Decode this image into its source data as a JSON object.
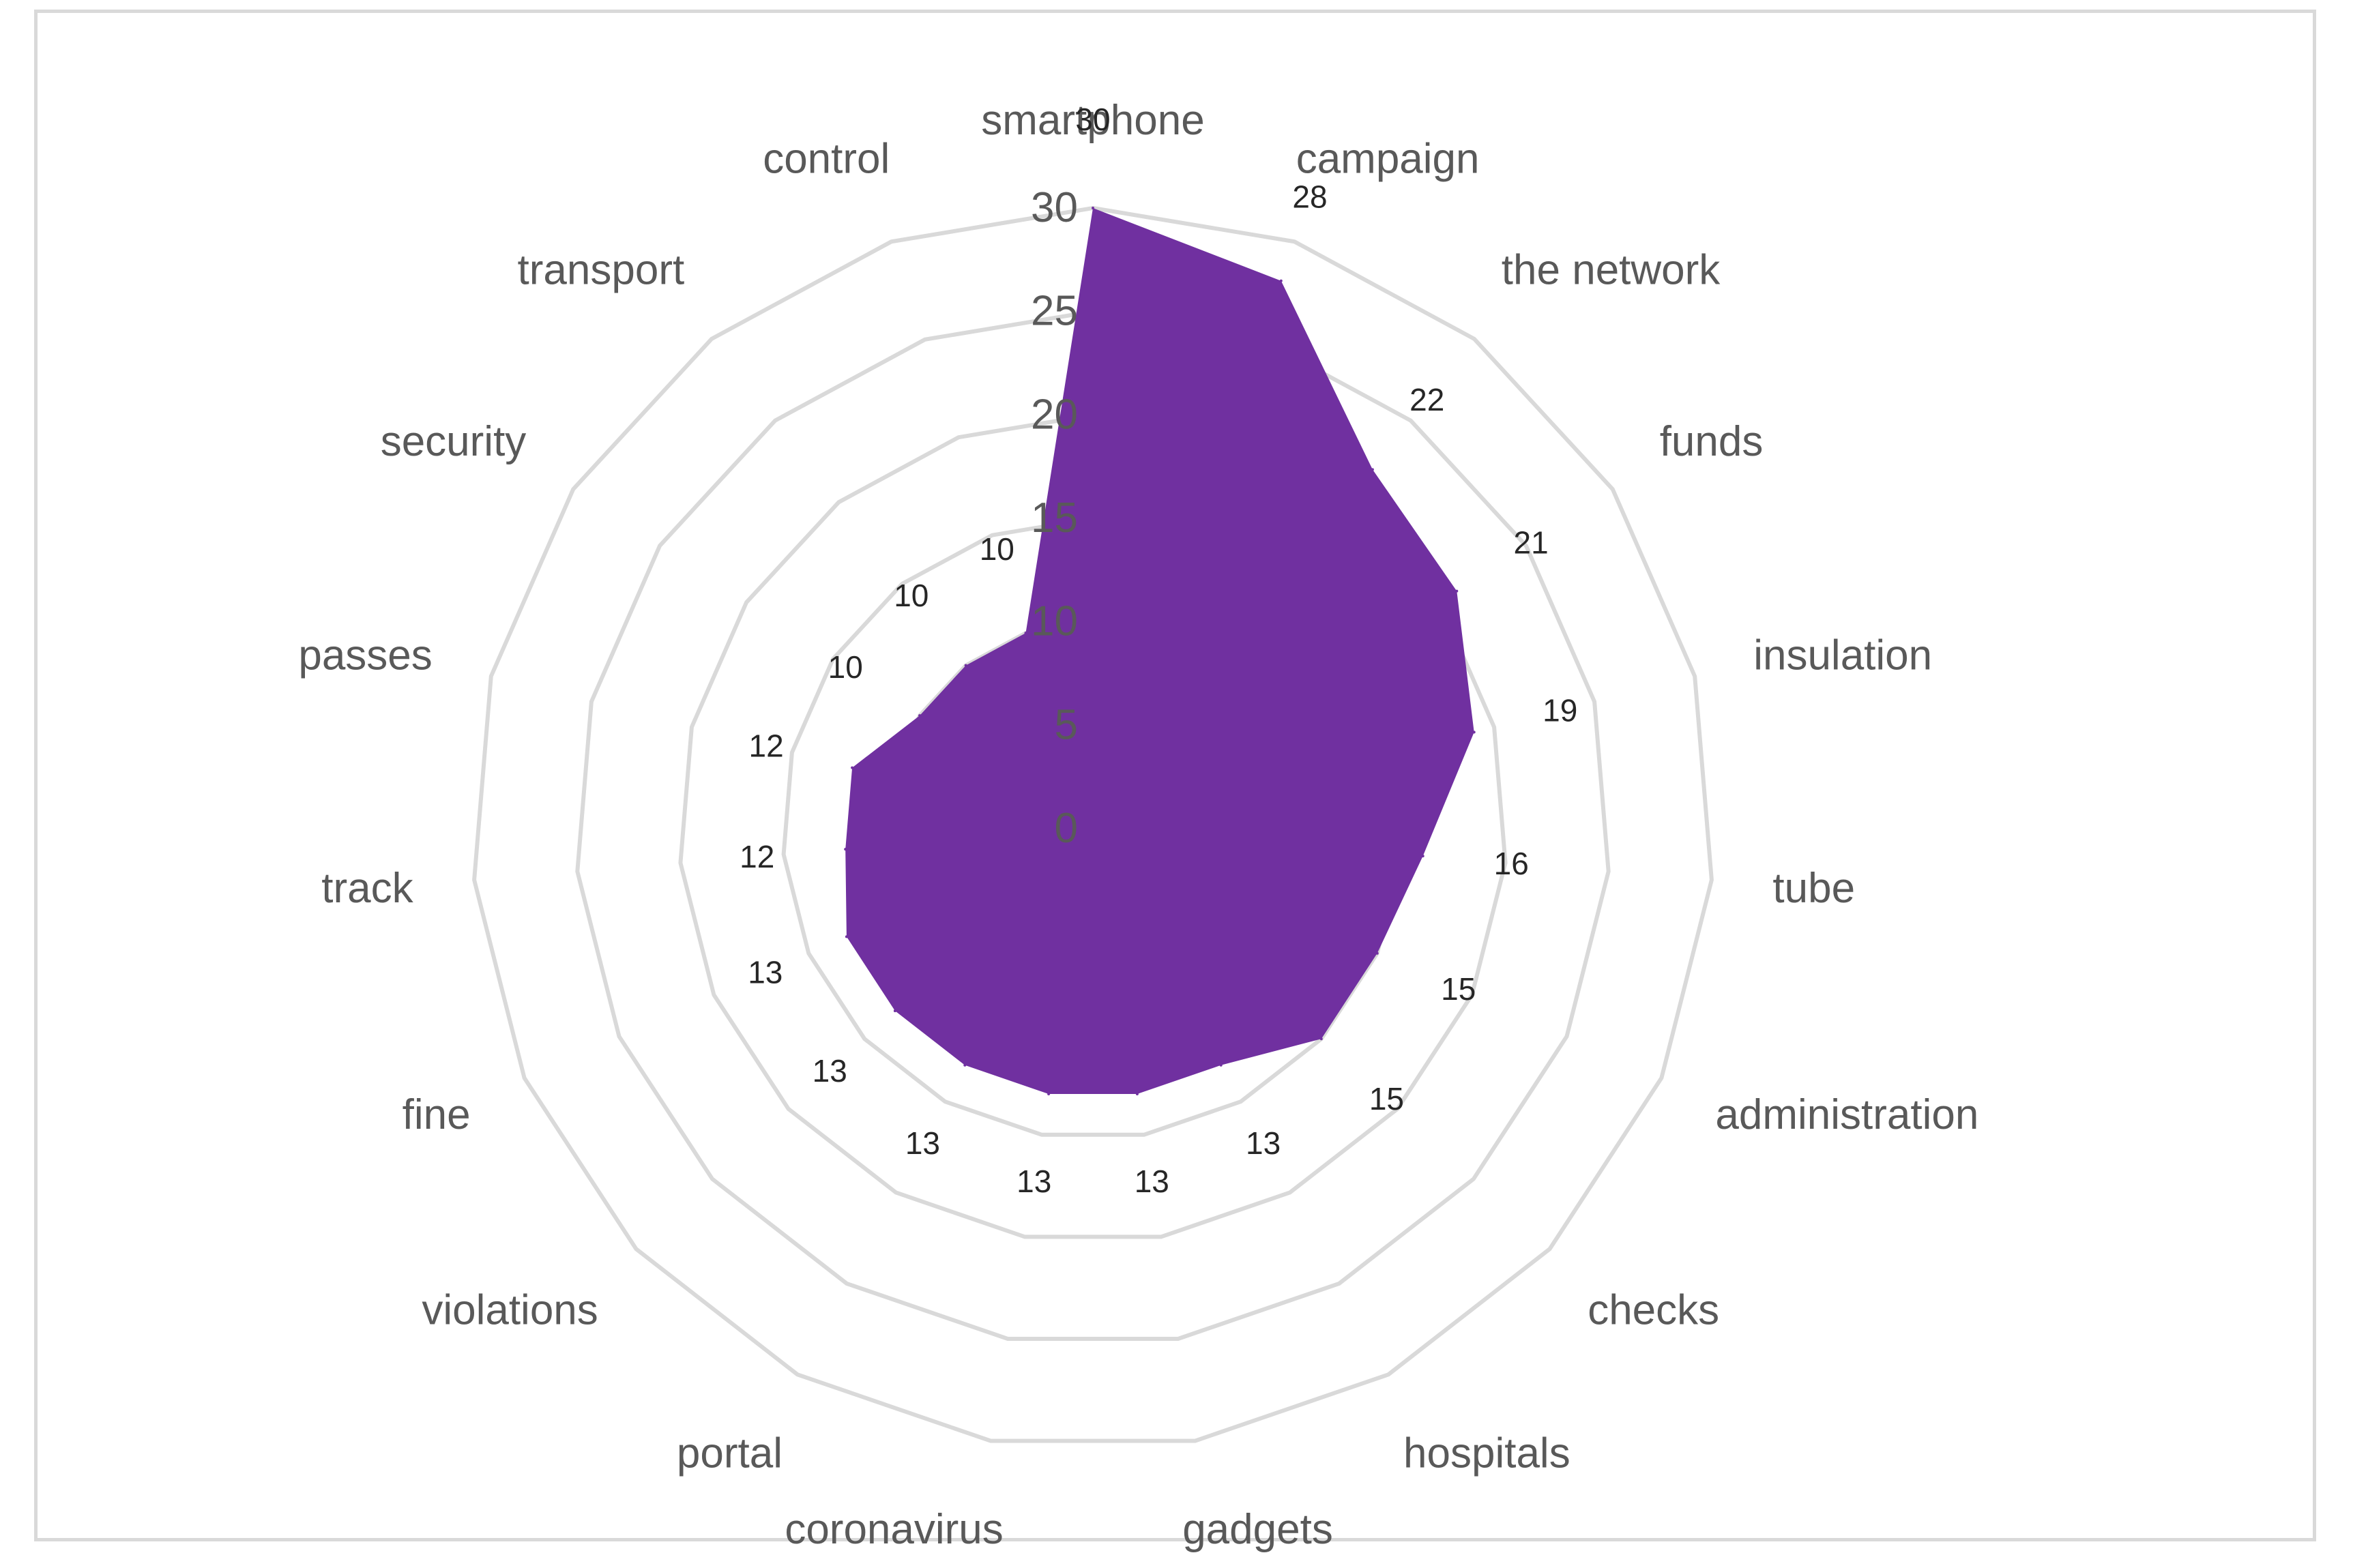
{
  "chart_data": {
    "type": "radar",
    "categories": [
      "smartphone",
      "campaign",
      "the network",
      "funds",
      "insulation",
      "tube",
      "administration",
      "checks",
      "hospitals",
      "gadgets",
      "coronavirus",
      "portal",
      "violations",
      "fine",
      "track",
      "passes",
      "security",
      "transport",
      "control"
    ],
    "series": [
      {
        "values": [
          30,
          28,
          22,
          21,
          19,
          16,
          15,
          15,
          13,
          13,
          13,
          13,
          13,
          13,
          12,
          12,
          10,
          10,
          10
        ]
      }
    ],
    "radial_ticks": [
      0,
      5,
      10,
      15,
      20,
      25,
      30
    ],
    "rlim": [
      0,
      30
    ],
    "grid": true,
    "legend": "none",
    "fill_color": "#7030a0",
    "grid_color": "#d9d9d9"
  }
}
